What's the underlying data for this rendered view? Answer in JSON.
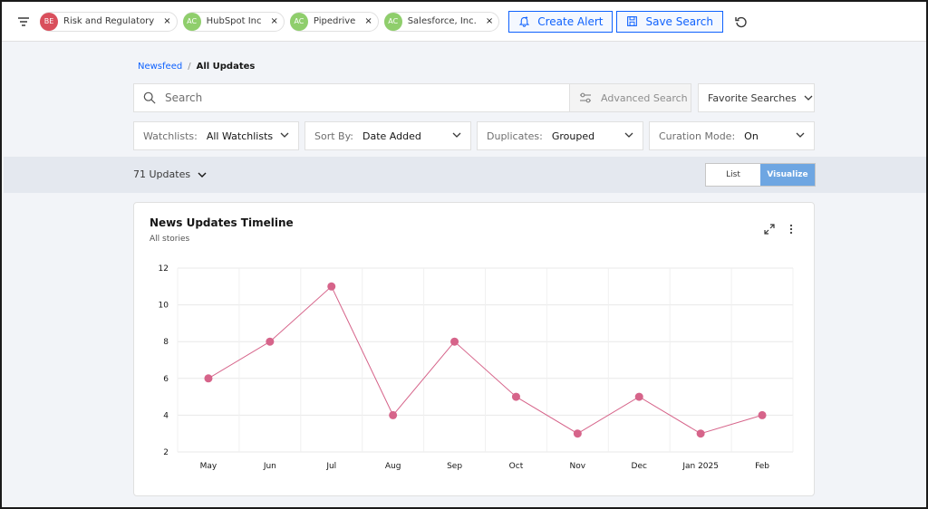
{
  "filters": [
    {
      "initials": "BE",
      "label": "Risk and Regulatory",
      "color": "#d94f5c"
    },
    {
      "initials": "AC",
      "label": "HubSpot Inc",
      "color": "#8fce6c"
    },
    {
      "initials": "AC",
      "label": "Pipedrive",
      "color": "#8fce6c"
    },
    {
      "initials": "AC",
      "label": "Salesforce, Inc.",
      "color": "#8fce6c"
    }
  ],
  "toolbar": {
    "create_alert": "Create Alert",
    "save_search": "Save Search",
    "remove_glyph": "×"
  },
  "breadcrumb": {
    "parent": "Newsfeed",
    "separator": "/",
    "current": "All Updates"
  },
  "search": {
    "placeholder": "Search",
    "advanced": "Advanced Search",
    "favorites": "Favorite Searches"
  },
  "dropdowns": {
    "watchlists": {
      "label": "Watchlists:",
      "value": "All Watchlists"
    },
    "sort_by": {
      "label": "Sort By:",
      "value": "Date Added"
    },
    "duplicates": {
      "label": "Duplicates:",
      "value": "Grouped"
    },
    "curation": {
      "label": "Curation Mode:",
      "value": "On"
    }
  },
  "updates": {
    "count_label": "71 Updates"
  },
  "view_toggle": {
    "list": "List",
    "visualize": "Visualize",
    "selected": "Visualize"
  },
  "card": {
    "title": "News Updates Timeline",
    "subtitle": "All stories"
  },
  "chart_data": {
    "type": "line",
    "title": "News Updates Timeline",
    "subtitle": "All stories",
    "categories": [
      "May",
      "Jun",
      "Jul",
      "Aug",
      "Sep",
      "Oct",
      "Nov",
      "Dec",
      "Jan 2025",
      "Feb"
    ],
    "series": [
      {
        "values": [
          6,
          8,
          11,
          4,
          8,
          5,
          3,
          5,
          3,
          4
        ],
        "color": "#d6648a"
      }
    ],
    "ylim": [
      2,
      12
    ],
    "yticks": [
      2,
      4,
      6,
      8,
      10,
      12
    ],
    "grid": true,
    "legend": "none"
  },
  "colors": {
    "accent": "#0f62fe",
    "series": "#d6648a",
    "toggle_active": "#6ea6e2"
  }
}
